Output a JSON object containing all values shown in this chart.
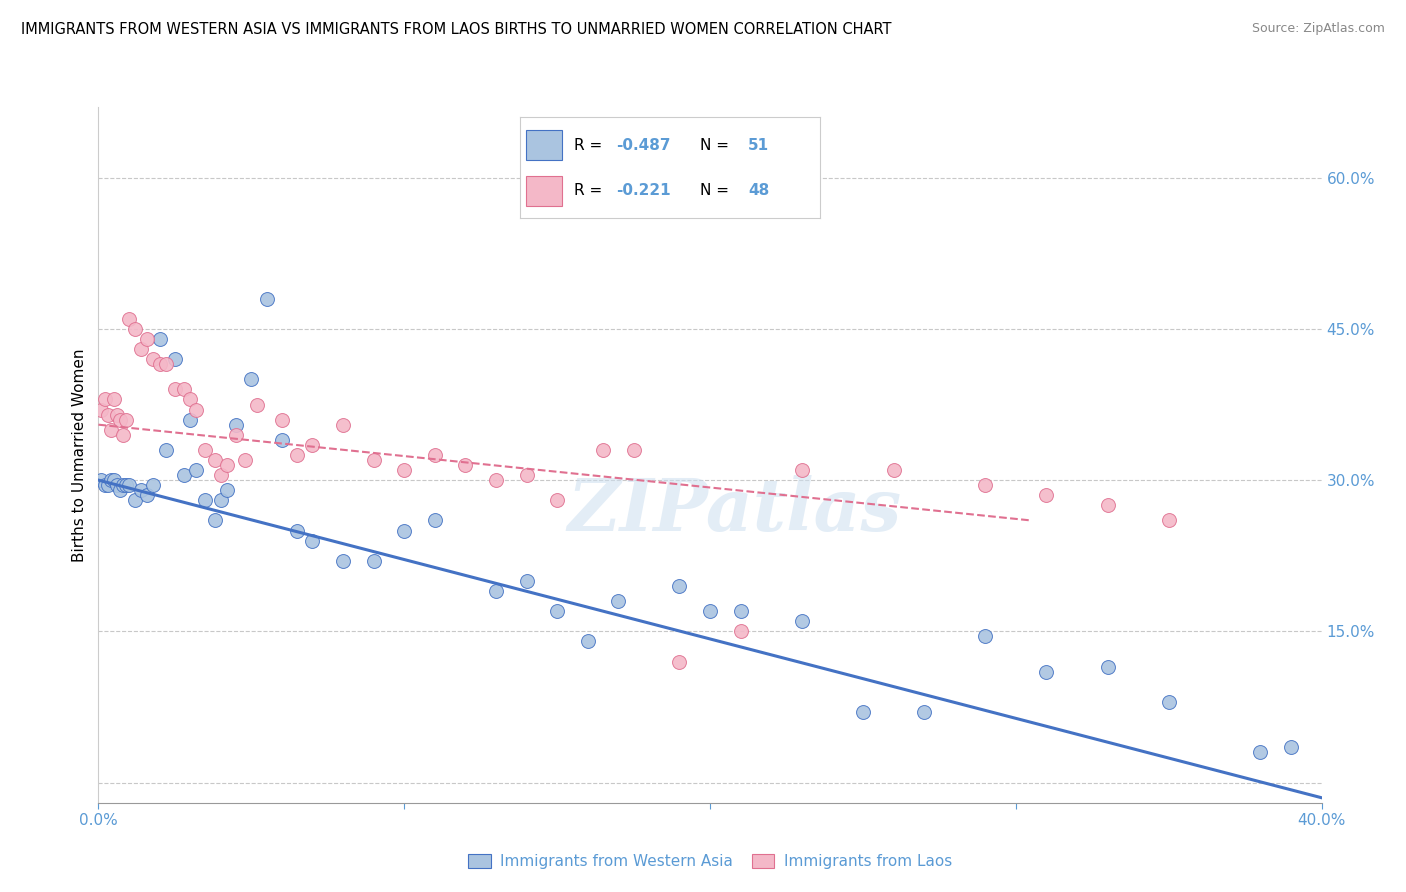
{
  "title": "IMMIGRANTS FROM WESTERN ASIA VS IMMIGRANTS FROM LAOS BIRTHS TO UNMARRIED WOMEN CORRELATION CHART",
  "source": "Source: ZipAtlas.com",
  "ylabel": "Births to Unmarried Women",
  "right_yticks": [
    0.0,
    0.15,
    0.3,
    0.45,
    0.6
  ],
  "right_yticklabels": [
    "",
    "15.0%",
    "30.0%",
    "45.0%",
    "60.0%"
  ],
  "xlim": [
    0.0,
    0.4
  ],
  "ylim": [
    -0.02,
    0.67
  ],
  "xticks": [
    0.0,
    0.1,
    0.2,
    0.3,
    0.4
  ],
  "xticklabels": [
    "0.0%",
    "",
    "",
    "",
    "40.0%"
  ],
  "watermark": "ZIPatlas",
  "blue_color": "#aac4e0",
  "blue_line_color": "#4472c4",
  "pink_color": "#f4b8c8",
  "pink_line_color": "#e07090",
  "axis_color": "#5b9bd5",
  "grid_color": "#c8c8c8",
  "blue_scatter_x": [
    0.001,
    0.002,
    0.003,
    0.004,
    0.005,
    0.006,
    0.007,
    0.008,
    0.009,
    0.01,
    0.012,
    0.014,
    0.016,
    0.018,
    0.02,
    0.022,
    0.025,
    0.028,
    0.03,
    0.032,
    0.035,
    0.038,
    0.04,
    0.042,
    0.045,
    0.05,
    0.055,
    0.06,
    0.065,
    0.07,
    0.08,
    0.09,
    0.1,
    0.11,
    0.13,
    0.14,
    0.15,
    0.16,
    0.17,
    0.19,
    0.2,
    0.21,
    0.23,
    0.25,
    0.27,
    0.29,
    0.31,
    0.33,
    0.35,
    0.38,
    0.39
  ],
  "blue_scatter_y": [
    0.3,
    0.295,
    0.295,
    0.3,
    0.3,
    0.295,
    0.29,
    0.295,
    0.295,
    0.295,
    0.28,
    0.29,
    0.285,
    0.295,
    0.44,
    0.33,
    0.42,
    0.305,
    0.36,
    0.31,
    0.28,
    0.26,
    0.28,
    0.29,
    0.355,
    0.4,
    0.48,
    0.34,
    0.25,
    0.24,
    0.22,
    0.22,
    0.25,
    0.26,
    0.19,
    0.2,
    0.17,
    0.14,
    0.18,
    0.195,
    0.17,
    0.17,
    0.16,
    0.07,
    0.07,
    0.145,
    0.11,
    0.115,
    0.08,
    0.03,
    0.035
  ],
  "pink_scatter_x": [
    0.001,
    0.002,
    0.003,
    0.004,
    0.005,
    0.006,
    0.007,
    0.008,
    0.009,
    0.01,
    0.012,
    0.014,
    0.016,
    0.018,
    0.02,
    0.022,
    0.025,
    0.028,
    0.03,
    0.032,
    0.035,
    0.038,
    0.04,
    0.042,
    0.045,
    0.048,
    0.052,
    0.06,
    0.065,
    0.07,
    0.08,
    0.09,
    0.1,
    0.11,
    0.12,
    0.13,
    0.14,
    0.15,
    0.165,
    0.175,
    0.19,
    0.21,
    0.23,
    0.26,
    0.29,
    0.31,
    0.33,
    0.35
  ],
  "pink_scatter_y": [
    0.37,
    0.38,
    0.365,
    0.35,
    0.38,
    0.365,
    0.36,
    0.345,
    0.36,
    0.46,
    0.45,
    0.43,
    0.44,
    0.42,
    0.415,
    0.415,
    0.39,
    0.39,
    0.38,
    0.37,
    0.33,
    0.32,
    0.305,
    0.315,
    0.345,
    0.32,
    0.375,
    0.36,
    0.325,
    0.335,
    0.355,
    0.32,
    0.31,
    0.325,
    0.315,
    0.3,
    0.305,
    0.28,
    0.33,
    0.33,
    0.12,
    0.15,
    0.31,
    0.31,
    0.295,
    0.285,
    0.275,
    0.26
  ],
  "blue_trend_x": [
    0.0,
    0.4
  ],
  "blue_trend_y": [
    0.3,
    -0.015
  ],
  "pink_trend_x": [
    0.0,
    0.305
  ],
  "pink_trend_y": [
    0.355,
    0.26
  ],
  "legend_label_blue": "Immigrants from Western Asia",
  "legend_label_pink": "Immigrants from Laos"
}
